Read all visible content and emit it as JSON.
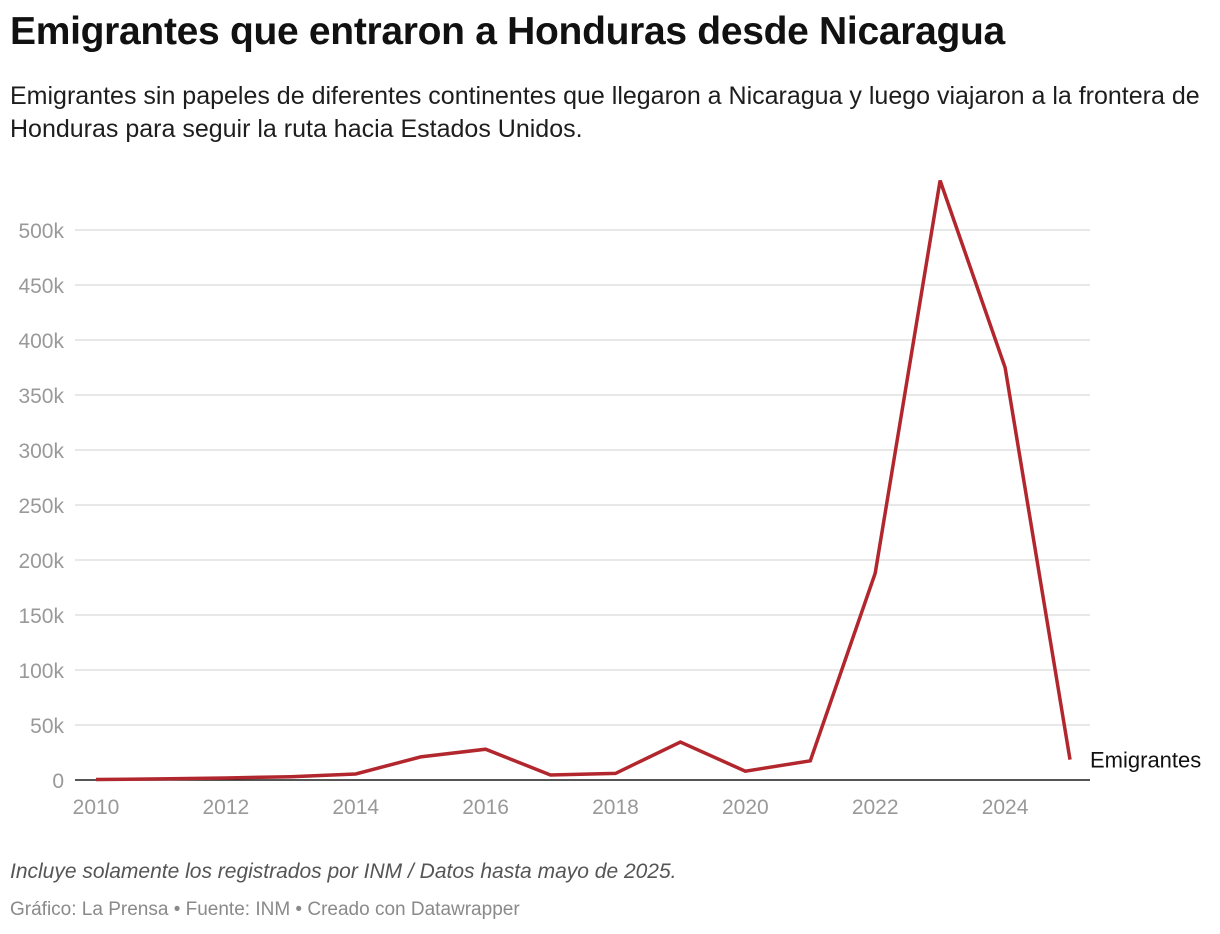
{
  "title": "Emigrantes que entraron a Honduras desde Nicaragua",
  "subtitle": "Emigrantes sin papeles de diferentes continentes que llegaron a Nicaragua y luego viajaron a la frontera de Honduras para seguir la ruta hacia Estados Unidos.",
  "notes": "Incluye solamente los registrados por INM / Datos hasta mayo de 2025.",
  "byline": "Gráfico: La Prensa • Fuente: INM • Creado con Datawrapper",
  "colors": {
    "line": "#b2272d",
    "grid": "#e0e0e0",
    "baseline": "#1d1d1d",
    "tick_text": "#999999"
  },
  "chart_data": {
    "type": "line",
    "title": "Emigrantes que entraron a Honduras desde Nicaragua",
    "xlabel": "",
    "ylabel": "",
    "xlim": [
      2010,
      2025
    ],
    "ylim": [
      0,
      550000
    ],
    "grid": true,
    "legend": "end-of-line label",
    "x_ticks": [
      2010,
      2012,
      2014,
      2016,
      2018,
      2020,
      2022,
      2024
    ],
    "x_tick_labels": [
      "2010",
      "2012",
      "2014",
      "2016",
      "2018",
      "2020",
      "2022",
      "2024"
    ],
    "y_ticks": [
      0,
      50000,
      100000,
      150000,
      200000,
      250000,
      300000,
      350000,
      400000,
      450000,
      500000
    ],
    "y_tick_labels": [
      "0",
      "50k",
      "100k",
      "150k",
      "200k",
      "250k",
      "300k",
      "350k",
      "400k",
      "450k",
      "500k"
    ],
    "series": [
      {
        "name": "Emigrantes",
        "x": [
          2010,
          2011,
          2012,
          2013,
          2014,
          2015,
          2016,
          2017,
          2018,
          2019,
          2020,
          2021,
          2022,
          2023,
          2024,
          2025
        ],
        "values": [
          500,
          1000,
          1800,
          3000,
          5500,
          21000,
          28000,
          4500,
          6000,
          34500,
          8000,
          17500,
          188000,
          545000,
          375000,
          18500
        ]
      }
    ]
  }
}
